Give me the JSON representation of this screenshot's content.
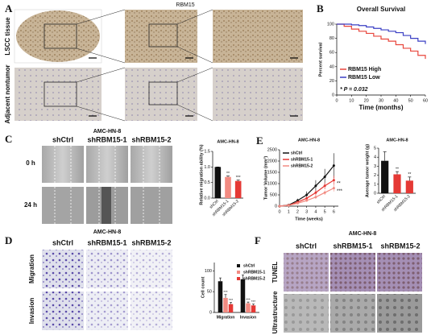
{
  "panels": {
    "A": {
      "label": "A",
      "title": "RBM15",
      "rows": [
        "LSCC tissue",
        "Adjacent nontumor"
      ]
    },
    "B": {
      "label": "B"
    },
    "C": {
      "label": "C",
      "title": "AMC-HN-8",
      "columns": [
        "shCtrl",
        "shRBM15-1",
        "shRBM15-2"
      ],
      "rows": [
        "0 h",
        "24 h"
      ]
    },
    "D": {
      "label": "D",
      "title": "AMC-HN-8",
      "columns": [
        "shCtrl",
        "shRBM15-1",
        "shRBM15-2"
      ],
      "rows": [
        "Migration",
        "Invasion"
      ]
    },
    "E": {
      "label": "E"
    },
    "F": {
      "label": "F",
      "title": "AMC-HN-8",
      "columns": [
        "shCtrl",
        "shRBM15-1",
        "shRBM15-2"
      ],
      "rows": [
        "TUNEL",
        "Ultrastructure"
      ]
    }
  },
  "chart_data": [
    {
      "type": "line",
      "title": "Overall Survival",
      "xlabel": "Time (months)",
      "ylabel": "Percent survival",
      "x": [
        0,
        5,
        10,
        15,
        20,
        25,
        30,
        35,
        40,
        45,
        50,
        55,
        60
      ],
      "series": [
        {
          "name": "RBM15 High",
          "color": "#e8463c",
          "values": [
            100,
            97,
            93,
            90,
            87,
            83,
            79,
            76,
            71,
            66,
            62,
            56,
            51
          ]
        },
        {
          "name": "RBM15 Low",
          "color": "#3a3fc4",
          "values": [
            100,
            100,
            99,
            98,
            96,
            94,
            92,
            90,
            88,
            84,
            80,
            76,
            72
          ]
        }
      ],
      "xlim": [
        0,
        60
      ],
      "ylim": [
        0,
        100
      ],
      "xticks": [
        0,
        10,
        20,
        30,
        40,
        50,
        60
      ],
      "yticks": [
        0,
        20,
        40,
        60,
        80,
        100
      ],
      "step": true,
      "legend": "lower left",
      "annotation": "* P = 0.032"
    },
    {
      "type": "bar",
      "title": "AMC-HN-8",
      "ylabel": "Relative migration ability (%)",
      "categories": [
        "shCtrl",
        "shRBM15-1",
        "shRBM15-2"
      ],
      "values": [
        1.0,
        0.68,
        0.55
      ],
      "errors": [
        0,
        0.03,
        0.03
      ],
      "colors": [
        "#111111",
        "#f28b82",
        "#e53935"
      ],
      "significance": [
        null,
        "**",
        "***"
      ],
      "ylim": [
        0,
        1.5
      ],
      "yticks": [
        {
          "value": 0,
          "label": "0.0"
        },
        {
          "value": 0.5,
          "label": "0.5"
        },
        {
          "value": 1,
          "label": "1.0"
        },
        {
          "value": 1.5,
          "label": "1.5"
        }
      ]
    },
    {
      "type": "line",
      "title": "AMC-HN-8",
      "xlabel": "Time (weeks)",
      "ylabel": "Tumor Volume (mm³)",
      "x": [
        0,
        1,
        2,
        3,
        4,
        5,
        6
      ],
      "series": [
        {
          "name": "shCtrl",
          "color": "#111111",
          "values": [
            0,
            50,
            250,
            500,
            900,
            1300,
            1800
          ],
          "errors": [
            0,
            20,
            80,
            150,
            250,
            350,
            550
          ]
        },
        {
          "name": "shRBM15-1",
          "color": "#e53935",
          "values": [
            0,
            40,
            180,
            350,
            600,
            900,
            1150
          ],
          "errors": [
            0,
            15,
            50,
            80,
            120,
            150,
            200
          ],
          "significance": "**"
        },
        {
          "name": "shRBM15-2",
          "color": "#f28b82",
          "values": [
            0,
            30,
            130,
            250,
            400,
            600,
            800
          ],
          "errors": [
            0,
            10,
            40,
            60,
            80,
            100,
            150
          ],
          "significance": "***"
        }
      ],
      "xlim": [
        0,
        6.5
      ],
      "ylim": [
        0,
        2500
      ],
      "xticks": [
        0,
        1,
        2,
        3,
        4,
        5,
        6
      ],
      "yticks": [
        0,
        500,
        1000,
        1500,
        2000,
        2500
      ],
      "legend": "upper left"
    },
    {
      "type": "bar",
      "title": "AMC-HN-8",
      "ylabel": "Average tumor weight (g)",
      "categories": [
        "shCtrl",
        "shRBM15-1",
        "shRBM15-2"
      ],
      "values": [
        3.6,
        2.1,
        1.4
      ],
      "errors": [
        1.0,
        0.3,
        0.4
      ],
      "colors": [
        "#111111",
        "#e53935",
        "#e53935"
      ],
      "significance": [
        null,
        "**",
        "**"
      ],
      "ylim": [
        0,
        5
      ],
      "yticks": [
        0,
        1,
        2,
        3,
        4,
        5
      ]
    },
    {
      "type": "bar",
      "ylabel": "Cell count",
      "categories": [
        "Migration",
        "Invasion"
      ],
      "series": [
        {
          "name": "shCtrl",
          "color": "#111111",
          "values": [
            75,
            80
          ],
          "errors": [
            8,
            10
          ]
        },
        {
          "name": "shRBM15-1",
          "color": "#f28b82",
          "values": [
            35,
            22
          ],
          "errors": [
            8,
            3
          ],
          "significance": [
            "***",
            "***"
          ]
        },
        {
          "name": "shRBM15-2",
          "color": "#e53935",
          "values": [
            20,
            17
          ],
          "errors": [
            4,
            3
          ],
          "significance": [
            "***",
            "***"
          ]
        }
      ],
      "ylim": [
        0,
        120
      ],
      "yticks": [
        0,
        50,
        100
      ],
      "legend": "upper right"
    }
  ]
}
